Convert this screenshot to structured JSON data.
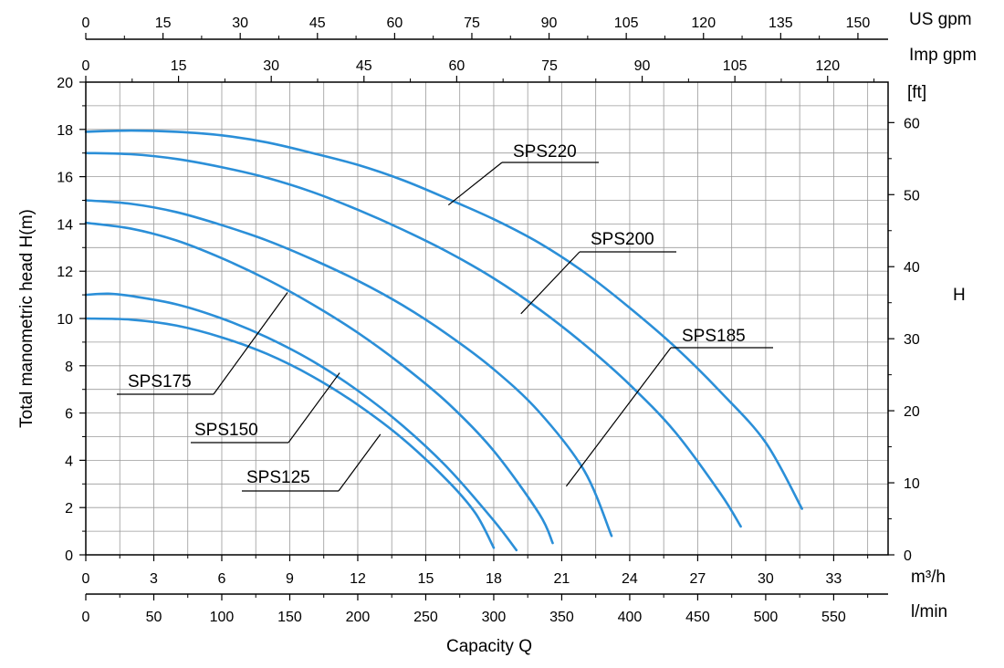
{
  "chart_data": {
    "type": "line",
    "title": "",
    "xlabel": "Capacity Q",
    "ylabel": "Total manometric head H(m)",
    "y2label": "H",
    "xlim": [
      0,
      35.4
    ],
    "ylim": [
      0,
      20
    ],
    "grid": true,
    "x_unit_labels": {
      "m3h": "m³/h",
      "lmin": "l/min",
      "usgpm": "US gpm",
      "impgpm": "Imp gpm",
      "ft": "[ft]"
    },
    "ticks": {
      "m3h": [
        0,
        3,
        6,
        9,
        12,
        15,
        18,
        21,
        24,
        27,
        30,
        33
      ],
      "lmin": [
        0,
        50,
        100,
        150,
        200,
        250,
        300,
        350,
        400,
        450,
        500,
        550
      ],
      "usgpm": [
        0,
        15,
        30,
        45,
        60,
        75,
        90,
        105,
        120,
        135,
        150
      ],
      "impgpm": [
        0,
        15,
        30,
        45,
        60,
        75,
        90,
        105,
        120
      ],
      "head_m": [
        0,
        2,
        4,
        6,
        8,
        10,
        12,
        14,
        16,
        18,
        20
      ],
      "head_ft": [
        0,
        10,
        20,
        30,
        40,
        50,
        60
      ]
    },
    "series": [
      {
        "name": "SPS220",
        "x": [
          0,
          2,
          4,
          6,
          8,
          10,
          12,
          14,
          16,
          18,
          20,
          22,
          24,
          26,
          28,
          30,
          31.6
        ],
        "y": [
          17.9,
          17.95,
          17.9,
          17.75,
          17.45,
          17.0,
          16.5,
          15.85,
          15.05,
          14.2,
          13.2,
          11.95,
          10.45,
          8.8,
          6.9,
          4.75,
          1.95
        ]
      },
      {
        "name": "SPS200",
        "x": [
          0,
          2,
          4,
          6,
          8,
          10,
          12,
          14,
          16,
          18,
          20,
          22,
          24,
          26,
          28,
          28.9
        ],
        "y": [
          17.0,
          16.95,
          16.75,
          16.4,
          15.95,
          15.35,
          14.6,
          13.75,
          12.8,
          11.7,
          10.4,
          8.9,
          7.2,
          5.2,
          2.6,
          1.2
        ]
      },
      {
        "name": "SPS185",
        "x": [
          0,
          2,
          4,
          6,
          8,
          10,
          12,
          14,
          16,
          18,
          20,
          22,
          23.2
        ],
        "y": [
          15.0,
          14.85,
          14.5,
          13.95,
          13.3,
          12.5,
          11.6,
          10.55,
          9.3,
          7.85,
          6.05,
          3.55,
          0.8
        ]
      },
      {
        "name": "SPS175",
        "x": [
          0,
          2,
          4,
          6,
          8,
          10,
          12,
          14,
          16,
          18,
          20,
          20.6
        ],
        "y": [
          14.05,
          13.8,
          13.3,
          12.55,
          11.65,
          10.6,
          9.4,
          8.0,
          6.4,
          4.4,
          1.75,
          0.5
        ]
      },
      {
        "name": "SPS150",
        "x": [
          0,
          1,
          2,
          4,
          6,
          8,
          10,
          12,
          14,
          16,
          18,
          19.0
        ],
        "y": [
          11.0,
          11.05,
          10.95,
          10.6,
          10.0,
          9.2,
          8.2,
          6.95,
          5.45,
          3.65,
          1.45,
          0.2
        ]
      },
      {
        "name": "SPS125",
        "x": [
          0,
          2,
          4,
          6,
          8,
          10,
          12,
          14,
          16,
          17.2,
          18.0
        ],
        "y": [
          10.0,
          9.95,
          9.7,
          9.2,
          8.5,
          7.55,
          6.35,
          4.9,
          3.1,
          1.75,
          0.3
        ]
      }
    ],
    "annotations": [
      {
        "text": "SPS220",
        "series": "SPS220",
        "x": 16,
        "y": 14.8
      },
      {
        "text": "SPS200",
        "series": "SPS200",
        "x": 19.2,
        "y": 10.2
      },
      {
        "text": "SPS185",
        "series": "SPS185",
        "x": 21.2,
        "y": 2.9
      },
      {
        "text": "SPS175",
        "series": "SPS175",
        "x": 8.9,
        "y": 11.1
      },
      {
        "text": "SPS150",
        "series": "SPS150",
        "x": 11.2,
        "y": 7.7
      },
      {
        "text": "SPS125",
        "series": "SPS125",
        "x": 13.0,
        "y": 5.1
      }
    ],
    "colors": {
      "curve": "#2b8fd8",
      "grid": "#9a9a9a",
      "axis": "#000000"
    }
  }
}
